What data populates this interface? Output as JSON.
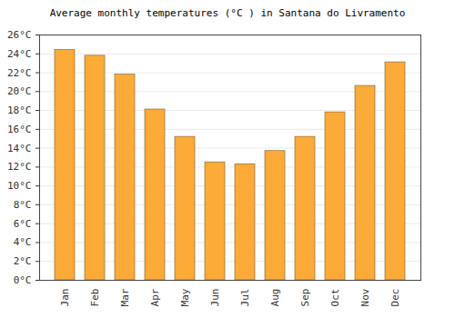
{
  "chart_data": {
    "type": "bar",
    "title": "Average monthly temperatures (°C ) in Santana do Livramento",
    "categories": [
      "Jan",
      "Feb",
      "Mar",
      "Apr",
      "May",
      "Jun",
      "Jul",
      "Aug",
      "Sep",
      "Oct",
      "Nov",
      "Dec"
    ],
    "values": [
      24.4,
      23.8,
      21.8,
      18.1,
      15.2,
      12.5,
      12.3,
      13.7,
      15.2,
      17.8,
      20.6,
      23.1
    ],
    "color": "#fdab38",
    "ylim": [
      0,
      26
    ],
    "yticks": [
      {
        "value": 0,
        "label": "0°C"
      },
      {
        "value": 2,
        "label": "2°C"
      },
      {
        "value": 4,
        "label": "4°C"
      },
      {
        "value": 6,
        "label": "6°C"
      },
      {
        "value": 8,
        "label": "8°C"
      },
      {
        "value": 10,
        "label": "10°C"
      },
      {
        "value": 12,
        "label": "12°C"
      },
      {
        "value": 14,
        "label": "14°C"
      },
      {
        "value": 16,
        "label": "16°C"
      },
      {
        "value": 18,
        "label": "18°C"
      },
      {
        "value": 20,
        "label": "20°C"
      },
      {
        "value": 22,
        "label": "22°C"
      },
      {
        "value": 24,
        "label": "24°C"
      },
      {
        "value": 26,
        "label": "26°C"
      }
    ],
    "grid": true
  }
}
